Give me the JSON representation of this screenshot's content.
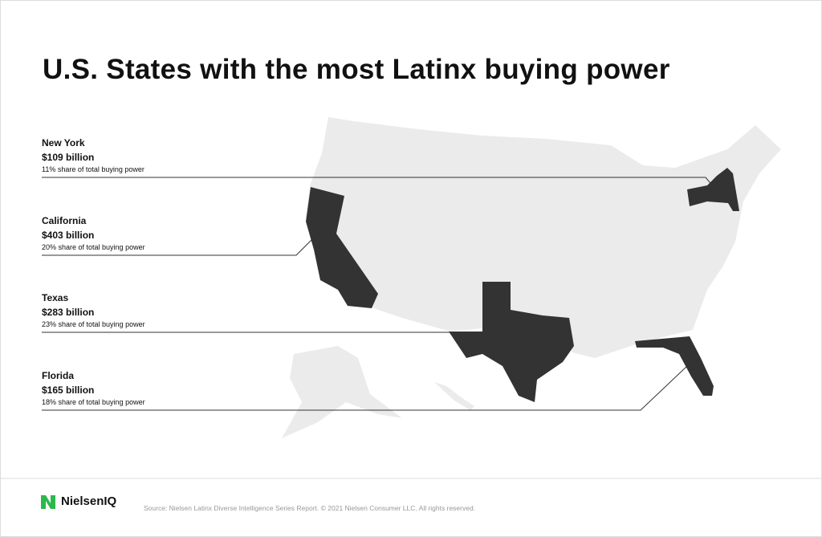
{
  "title": "U.S. States with the most Latinx buying power",
  "states": [
    {
      "name": "New York",
      "amount": "$109 billion",
      "share": "11% share of total buying power"
    },
    {
      "name": "California",
      "amount": "$403 billion",
      "share": "20% share of total buying power"
    },
    {
      "name": "Texas",
      "amount": "$283 billion",
      "share": "23% share of total buying power"
    },
    {
      "name": "Florida",
      "amount": "$165 billion",
      "share": "18% share of total buying power"
    }
  ],
  "footer": {
    "brand": "NielsenIQ",
    "source": "Source: Nielsen Latinx Diverse Intelligence Series Report. © 2021 Nielsen Consumer LLC. All rights reserved."
  }
}
